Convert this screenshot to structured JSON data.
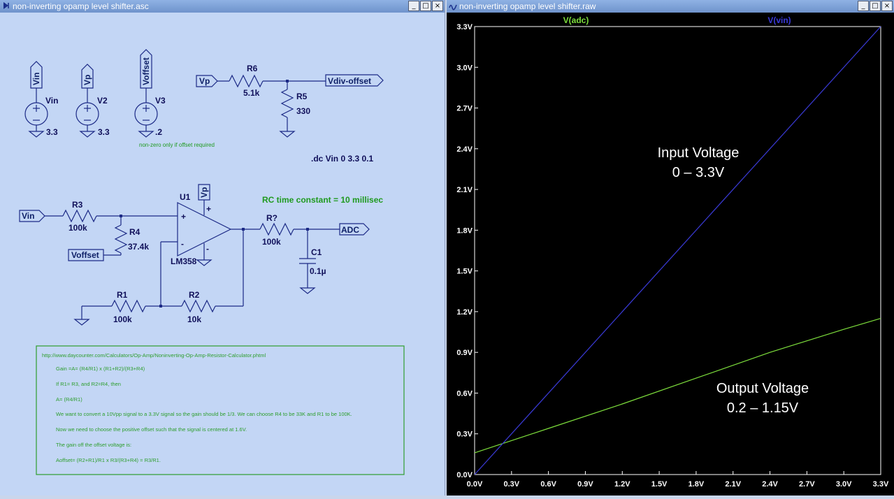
{
  "schematic_window": {
    "title": "non-inverting opamp level shifter.asc",
    "buttons": {
      "minimize": "_",
      "maximize": "□",
      "close": "×"
    },
    "flags": {
      "vin": "Vin",
      "vp": "Vp",
      "voffset": "Voffset",
      "vp_amp": "Vp",
      "vin_amp": "Vin",
      "voffset_amp": "Voffset",
      "vp_div": "Vp",
      "vdiv_offset": "Vdiv-offset",
      "adc": "ADC"
    },
    "sources": [
      {
        "name": "Vin",
        "value": "3.3"
      },
      {
        "name": "V2",
        "value": "3.3"
      },
      {
        "name": "V3",
        "value": ".2"
      }
    ],
    "source_note": "non-zero only if offset required",
    "components": {
      "r6": {
        "name": "R6",
        "value": "5.1k"
      },
      "r5": {
        "name": "R5",
        "value": "330"
      },
      "r3": {
        "name": "R3",
        "value": "100k"
      },
      "r4": {
        "name": "R4",
        "value": "37.4k"
      },
      "r1": {
        "name": "R1",
        "value": "100k"
      },
      "r2": {
        "name": "R2",
        "value": "10k"
      },
      "rq": {
        "name": "R?",
        "value": "100k"
      },
      "c1": {
        "name": "C1",
        "value": "0.1µ"
      },
      "u1": {
        "name": "U1",
        "value": "LM358"
      }
    },
    "pin_marks": {
      "plus": "+",
      "minus": "-"
    },
    "directive": ".dc Vin 0 3.3 0.1",
    "rc_comment": "RC time constant = 10 millisec",
    "notes": [
      "http://www.daycounter.com/Calculators/Op-Amp/Noninverting-Op-Amp-Resistor-Calculator.phtml",
      "Gain =A= (R4/R1) x (R1+R2)/(R3+R4)",
      "If R1= R3, and R2=R4, then",
      "A= (R4/R1)",
      "We want to convert a 10Vpp signal to a 3.3V signal so the gain should be 1/3.  We can choose R4 to be 33K and R1 to be 100K.",
      "Now we need to choose the positive offset such that the signal is centered at 1.6V.",
      "The gain off the offset voltage is:",
      "Aoffset= (R2+R1)/R1 x R3/(R3+R4) = R3/R1."
    ]
  },
  "plot_window": {
    "title": "non-inverting opamp level shifter.raw",
    "buttons": {
      "minimize": "_",
      "maximize": "□",
      "close": "×"
    },
    "annotations": {
      "input_l1": "Input Voltage",
      "input_l2": "0 – 3.3V",
      "output_l1": "Output Voltage",
      "output_l2": "0.2 – 1.15V"
    }
  },
  "colors": {
    "plot_bg": "#000000",
    "vadc": "#7dde3c",
    "vvin": "#3a3ad8",
    "wire": "#1c2a86"
  },
  "chart_data": {
    "type": "line",
    "title": "",
    "xlim": [
      0,
      3.3
    ],
    "ylim": [
      0,
      3.3
    ],
    "x_ticks": [
      "0.0V",
      "0.3V",
      "0.6V",
      "0.9V",
      "1.2V",
      "1.5V",
      "1.8V",
      "2.1V",
      "2.4V",
      "2.7V",
      "3.0V",
      "3.3V"
    ],
    "y_ticks": [
      "0.0V",
      "0.3V",
      "0.6V",
      "0.9V",
      "1.2V",
      "1.5V",
      "1.8V",
      "2.1V",
      "2.4V",
      "2.7V",
      "3.0V",
      "3.3V"
    ],
    "grid": false,
    "series": [
      {
        "name": "V(adc)",
        "color": "#7dde3c",
        "x": [
          0,
          0.6,
          1.2,
          1.8,
          2.4,
          3.0,
          3.3
        ],
        "y": [
          0.16,
          0.34,
          0.52,
          0.71,
          0.9,
          1.07,
          1.15
        ]
      },
      {
        "name": "V(vin)",
        "color": "#3a3ad8",
        "x": [
          0,
          3.3
        ],
        "y": [
          0,
          3.3
        ]
      }
    ]
  }
}
